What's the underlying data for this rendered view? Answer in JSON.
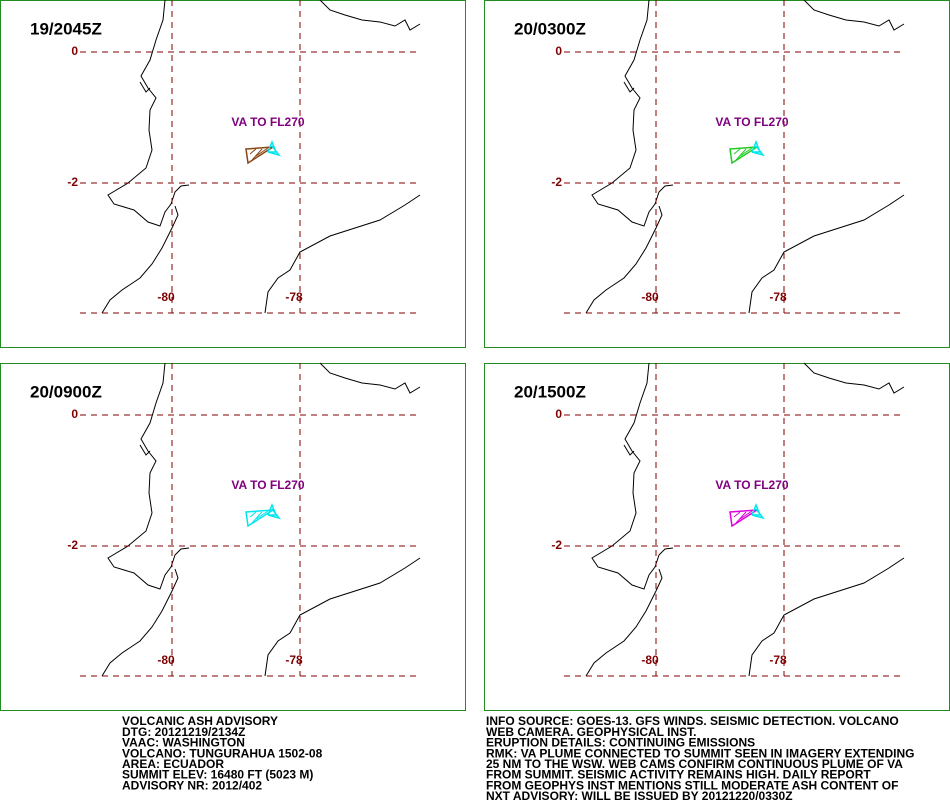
{
  "panels": [
    {
      "time": "19/2045Z",
      "annotation": "VA TO FL270",
      "lat_labels": [
        "0",
        "-2"
      ],
      "lon_labels": [
        "-80",
        "-78"
      ],
      "plume_color": "#8b4513"
    },
    {
      "time": "20/0300Z",
      "annotation": "VA TO FL270",
      "lat_labels": [
        "0",
        "-2"
      ],
      "lon_labels": [
        "-80",
        "-78"
      ],
      "plume_color": "#22cc22"
    },
    {
      "time": "20/0900Z",
      "annotation": "VA TO FL270",
      "lat_labels": [
        "0",
        "-2"
      ],
      "lon_labels": [
        "-80",
        "-78"
      ],
      "plume_color": "#00e5ee"
    },
    {
      "time": "20/1500Z",
      "annotation": "VA TO FL270",
      "lat_labels": [
        "0",
        "-2"
      ],
      "lon_labels": [
        "-80",
        "-78"
      ],
      "plume_color": "#dd00dd"
    }
  ],
  "advisory_left": [
    "VOLCANIC ASH ADVISORY",
    "DTG: 20121219/2134Z",
    "VAAC: WASHINGTON",
    "VOLCANO: TUNGURAHUA 1502-08",
    "AREA: ECUADOR",
    "SUMMIT ELEV: 16480 FT (5023 M)",
    "ADVISORY NR: 2012/402"
  ],
  "advisory_right": [
    "INFO SOURCE: GOES-13. GFS WINDS. SEISMIC DETECTION. VOLCANO",
    "WEB CAMERA. GEOPHYSICAL INST.",
    "ERUPTION DETAILS: CONTINUING EMISSIONS",
    "RMK: VA PLUME CONNECTED TO SUMMIT SEEN IN IMAGERY EXTENDING",
    "25 NM TO THE WSW. WEB CAMS CONFIRM CONTINUOUS PLUME OF VA",
    "FROM SUMMIT. SEISMIC ACTIVITY REMAINS HIGH. DAILY REPORT",
    "FROM GEOPHYS INST MENTIONS STILL MODERATE ASH CONTENT OF",
    "NXT ADVISORY: WILL BE ISSUED BY 20121220/0330Z"
  ]
}
